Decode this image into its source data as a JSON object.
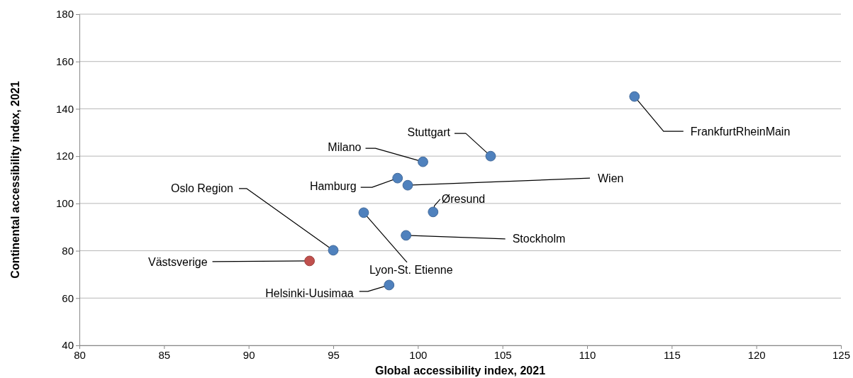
{
  "chart_data": {
    "type": "scatter",
    "xlabel": "Global accessibility index, 2021",
    "ylabel": "Continental accessibility index, 2021",
    "xlim": [
      80,
      125
    ],
    "xticks": [
      80,
      85,
      90,
      95,
      100,
      105,
      110,
      115,
      120,
      125
    ],
    "ylim": [
      40,
      180
    ],
    "yticks": [
      40,
      60,
      80,
      100,
      120,
      140,
      160,
      180
    ],
    "grid": "y",
    "marker": "circle",
    "x": [
      112.8,
      104.3,
      100.3,
      98.8,
      99.4,
      100.9,
      96.8,
      99.3,
      95.0,
      93.6,
      98.3
    ],
    "values": [
      145.2,
      120.0,
      117.6,
      110.7,
      107.7,
      96.4,
      96.1,
      86.5,
      80.2,
      75.7,
      65.5
    ],
    "colors": [
      "#4f81bd",
      "#4f81bd",
      "#4f81bd",
      "#4f81bd",
      "#4f81bd",
      "#4f81bd",
      "#4f81bd",
      "#4f81bd",
      "#4f81bd",
      "#c0504d",
      "#4f81bd"
    ],
    "annotations": [
      {
        "text": "FrankfurtRheinMain",
        "x": 112.8,
        "y": 145.2
      },
      {
        "text": "Stuttgart",
        "x": 104.3,
        "y": 120.0
      },
      {
        "text": "Milano",
        "x": 100.3,
        "y": 117.6
      },
      {
        "text": "Hamburg",
        "x": 98.8,
        "y": 110.7
      },
      {
        "text": "Wien",
        "x": 99.4,
        "y": 107.7
      },
      {
        "text": "Øresund",
        "x": 100.9,
        "y": 96.4
      },
      {
        "text": "Lyon-St. Etienne",
        "x": 96.8,
        "y": 96.1
      },
      {
        "text": "Stockholm",
        "x": 99.3,
        "y": 86.5
      },
      {
        "text": "Oslo Region",
        "x": 95.0,
        "y": 80.2
      },
      {
        "text": "Västsverige",
        "x": 93.6,
        "y": 75.7
      },
      {
        "text": "Helsinki-Uusimaa",
        "x": 98.3,
        "y": 65.5
      }
    ]
  }
}
